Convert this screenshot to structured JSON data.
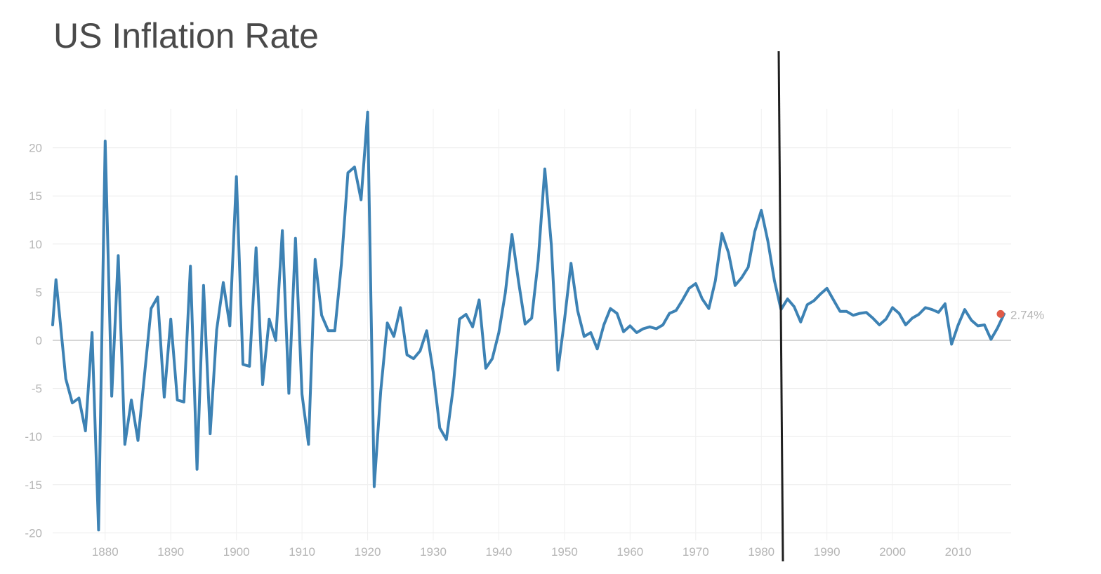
{
  "chart_data": {
    "type": "line",
    "title": "US Inflation Rate",
    "xlabel": "",
    "ylabel": "",
    "xlim": [
      1872,
      2017
    ],
    "ylim": [
      -20,
      23.5
    ],
    "x_ticks": [
      1880,
      1890,
      1900,
      1910,
      1920,
      1930,
      1940,
      1950,
      1960,
      1970,
      1980,
      1990,
      2000,
      2010
    ],
    "y_ticks": [
      20,
      15,
      10,
      5,
      0,
      -5,
      -10,
      -15,
      -20
    ],
    "grid": true,
    "legend": "none",
    "series": [
      {
        "color": "#3d82b4",
        "x": [
          1872,
          1872.5,
          1873,
          1874,
          1875,
          1876,
          1877,
          1878,
          1879,
          1880,
          1881,
          1882,
          1883,
          1884,
          1885,
          1886,
          1887,
          1888,
          1889,
          1890,
          1891,
          1892,
          1893,
          1894,
          1895,
          1896,
          1897,
          1898,
          1899,
          1900,
          1901,
          1902,
          1903,
          1904,
          1905,
          1906,
          1907,
          1908,
          1909,
          1910,
          1911,
          1912,
          1913,
          1914,
          1915,
          1916,
          1917,
          1918,
          1919,
          1920,
          1921,
          1922,
          1923,
          1924,
          1925,
          1926,
          1927,
          1928,
          1929,
          1930,
          1931,
          1932,
          1933,
          1934,
          1935,
          1936,
          1937,
          1938,
          1939,
          1940,
          1941,
          1942,
          1943,
          1944,
          1945,
          1946,
          1947,
          1948,
          1949,
          1950,
          1951,
          1952,
          1953,
          1954,
          1955,
          1956,
          1957,
          1958,
          1959,
          1960,
          1961,
          1962,
          1963,
          1964,
          1965,
          1966,
          1967,
          1968,
          1969,
          1970,
          1971,
          1972,
          1973,
          1974,
          1975,
          1976,
          1977,
          1978,
          1979,
          1980,
          1981,
          1982,
          1983,
          1984,
          1985,
          1986,
          1987,
          1988,
          1989,
          1990,
          1991,
          1992,
          1993,
          1994,
          1995,
          1996,
          1997,
          1998,
          1999,
          2000,
          2001,
          2002,
          2003,
          2004,
          2005,
          2006,
          2007,
          2008,
          2009,
          2010,
          2011,
          2012,
          2013,
          2014,
          2015,
          2016,
          2017
        ],
        "y": [
          1.6,
          6.3,
          3.0,
          -4.0,
          -6.5,
          -6.0,
          -9.4,
          0.8,
          -19.7,
          20.7,
          -5.8,
          8.8,
          -10.8,
          -6.2,
          -10.4,
          -3.6,
          3.3,
          4.5,
          -5.9,
          2.2,
          -6.2,
          -6.4,
          7.7,
          -13.4,
          5.7,
          -9.7,
          1.1,
          6.0,
          1.5,
          17.0,
          -2.5,
          -2.7,
          9.6,
          -4.6,
          2.2,
          0.0,
          11.4,
          -5.5,
          10.6,
          -5.6,
          -10.8,
          8.4,
          2.6,
          1.0,
          1.0,
          7.9,
          17.4,
          18.0,
          14.6,
          23.7,
          -15.2,
          -5.3,
          1.8,
          0.4,
          3.4,
          -1.5,
          -1.9,
          -1.1,
          1.0,
          -3.3,
          -9.1,
          -10.3,
          -5.2,
          2.2,
          2.7,
          1.4,
          4.2,
          -2.9,
          -1.9,
          0.8,
          5.0,
          11.0,
          6.1,
          1.7,
          2.3,
          8.3,
          17.8,
          9.9,
          -3.1,
          2.1,
          8.0,
          3.1,
          0.4,
          0.8,
          -0.9,
          1.6,
          3.3,
          2.8,
          0.9,
          1.5,
          0.8,
          1.2,
          1.4,
          1.2,
          1.6,
          2.8,
          3.1,
          4.2,
          5.4,
          5.9,
          4.3,
          3.3,
          6.2,
          11.1,
          9.1,
          5.7,
          6.5,
          7.6,
          11.3,
          13.5,
          10.3,
          6.2,
          3.2,
          4.3,
          3.5,
          1.9,
          3.7,
          4.1,
          4.8,
          5.4,
          4.2,
          3.0,
          3.0,
          2.6,
          2.8,
          2.9,
          2.3,
          1.6,
          2.2,
          3.4,
          2.8,
          1.6,
          2.3,
          2.7,
          3.4,
          3.2,
          2.9,
          3.8,
          -0.4,
          1.6,
          3.2,
          2.1,
          1.5,
          1.6,
          0.1,
          1.3,
          2.74
        ]
      }
    ],
    "end_label": "2.74%",
    "end_marker_color": "#e05a47"
  }
}
